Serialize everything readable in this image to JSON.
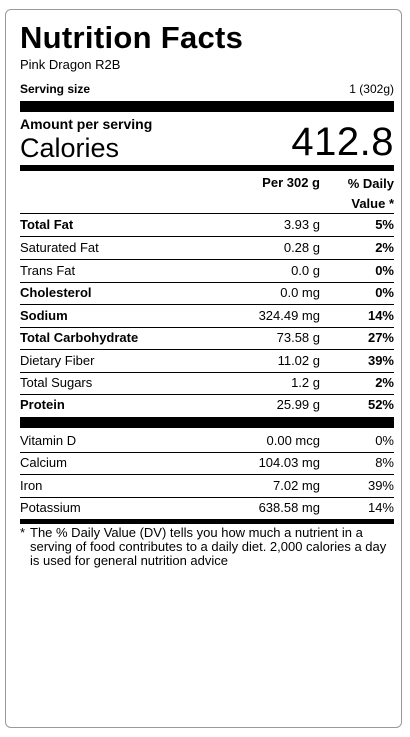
{
  "title": "Nutrition Facts",
  "product_name": "Pink Dragon R2B",
  "serving": {
    "label": "Serving size",
    "value": "1 (302g)"
  },
  "calories": {
    "amount_label": "Amount per serving",
    "label": "Calories",
    "value": "412.8"
  },
  "columns": {
    "per": "Per 302 g",
    "dv_line1": "% Daily",
    "dv_line2": "Value *"
  },
  "nutrients": [
    {
      "name": "Total Fat",
      "amount": "3.93 g",
      "dv": "5%"
    },
    {
      "name": "Saturated Fat",
      "amount": "0.28 g",
      "dv": "2%"
    },
    {
      "name": "Trans Fat",
      "amount": "0.0 g",
      "dv": "0%"
    },
    {
      "name": "Cholesterol",
      "amount": "0.0 mg",
      "dv": "0%"
    },
    {
      "name": "Sodium",
      "amount": "324.49 mg",
      "dv": "14%"
    },
    {
      "name": "Total Carbohydrate",
      "amount": "73.58 g",
      "dv": "27%"
    },
    {
      "name": "Dietary Fiber",
      "amount": "11.02 g",
      "dv": "39%"
    },
    {
      "name": "Total Sugars",
      "amount": "1.2 g",
      "dv": "2%"
    },
    {
      "name": "Protein",
      "amount": "25.99 g",
      "dv": "52%"
    }
  ],
  "micronutrients": [
    {
      "name": "Vitamin D",
      "amount": "0.00 mcg",
      "dv": "0%"
    },
    {
      "name": "Calcium",
      "amount": "104.03 mg",
      "dv": "8%"
    },
    {
      "name": "Iron",
      "amount": "7.02 mg",
      "dv": "39%"
    },
    {
      "name": "Potassium",
      "amount": "638.58 mg",
      "dv": "14%"
    }
  ],
  "footnote": {
    "star": "*",
    "text": "The % Daily Value (DV) tells you how much a nutrient in a serving of food contributes to a daily diet. 2,000 calories a day is used for general nutrition advice"
  }
}
